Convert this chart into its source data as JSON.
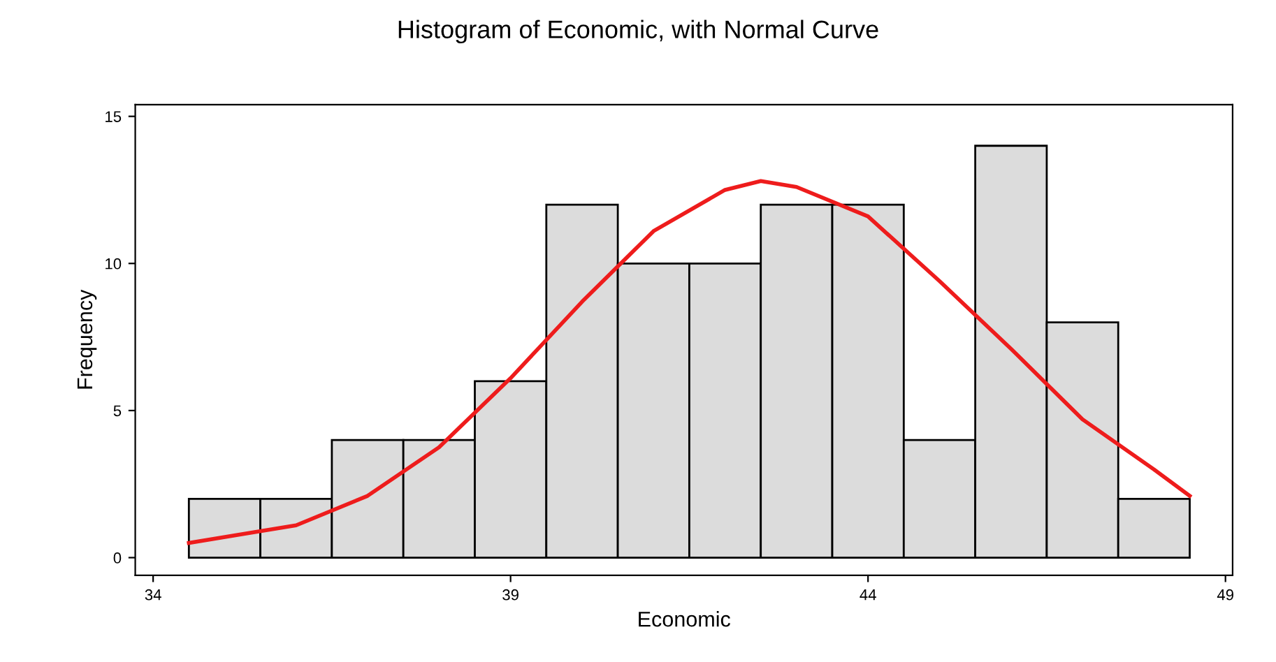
{
  "chart_data": {
    "type": "histogram",
    "title": "Histogram of Economic, with Normal Curve",
    "xlabel": "Economic",
    "ylabel": "Frequency",
    "bins": [
      34.5,
      35.5,
      36.5,
      37.5,
      38.5,
      39.5,
      40.5,
      41.5,
      42.5,
      43.5,
      44.5,
      45.5,
      46.5,
      47.5,
      48.5
    ],
    "values": [
      2,
      2,
      4,
      4,
      6,
      12,
      10,
      10,
      12,
      12,
      4,
      14,
      8,
      2
    ],
    "color": "#dcdcdc",
    "series": [
      {
        "type": "line",
        "color": "#ee1c1c",
        "x": [
          34.5,
          36,
          37,
          38,
          39,
          40,
          41,
          42,
          42.5,
          43,
          44,
          45,
          46,
          47,
          48,
          48.5
        ],
        "values": [
          0.5,
          1.1,
          2.1,
          3.75,
          6.1,
          8.7,
          11.1,
          12.5,
          12.8,
          12.6,
          11.6,
          9.4,
          7.1,
          4.7,
          3.0,
          2.1
        ]
      }
    ],
    "xlim": [
      33.75,
      49.1
    ],
    "xticks": [
      34,
      39,
      44,
      49
    ],
    "ylim": [
      -0.6,
      15.4
    ],
    "yticks": [
      0,
      5,
      10,
      15
    ],
    "grid": false,
    "legend": false
  }
}
